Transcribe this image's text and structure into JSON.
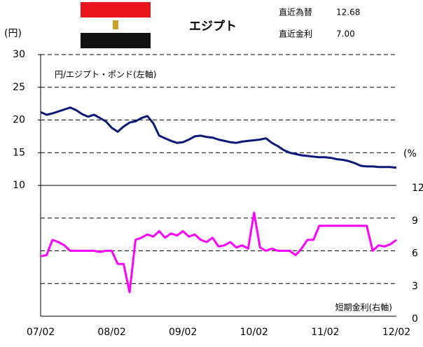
{
  "header": {
    "country": "エジプト",
    "fx_label": "直近為替",
    "fx_value": "12.68",
    "rate_label": "直近金利",
    "rate_value": "7.00"
  },
  "chart_data": {
    "type": "line",
    "ylabel": "(円)",
    "y2label": "(%",
    "x": [
      "07/02",
      "07/03",
      "07/04",
      "07/05",
      "07/06",
      "07/07",
      "07/08",
      "07/09",
      "07/10",
      "07/11",
      "07/12",
      "08/01",
      "08/02",
      "08/03",
      "08/04",
      "08/05",
      "08/06",
      "08/07",
      "08/08",
      "08/09",
      "08/10",
      "08/11",
      "08/12",
      "09/01",
      "09/02",
      "09/03",
      "09/04",
      "09/05",
      "09/06",
      "09/07",
      "09/08",
      "09/09",
      "09/10",
      "09/11",
      "09/12",
      "10/01",
      "10/02",
      "10/03",
      "10/04",
      "10/05",
      "10/06",
      "10/07",
      "10/08",
      "10/09",
      "10/10",
      "10/11",
      "10/12",
      "11/01",
      "11/02",
      "11/03",
      "11/04",
      "11/05",
      "11/06",
      "11/07",
      "11/08",
      "11/09",
      "11/10",
      "11/11",
      "11/12",
      "12/01",
      "12/02"
    ],
    "xticks": [
      0,
      12,
      24,
      36,
      48,
      60
    ],
    "ylim": [
      -10,
      30
    ],
    "yticks": [
      10,
      15,
      20,
      25,
      30
    ],
    "y2lim": [
      0,
      24
    ],
    "y2ticks": [
      0,
      3,
      6,
      9,
      12
    ],
    "grid": true,
    "series": [
      {
        "name": "円/エジプト・ポンド(左軸)",
        "color": "#0a1a7a",
        "values": [
          21.2,
          20.8,
          21.0,
          21.3,
          21.6,
          21.9,
          21.5,
          20.9,
          20.5,
          20.8,
          20.3,
          19.8,
          18.8,
          18.2,
          19.0,
          19.6,
          19.8,
          20.3,
          20.6,
          19.5,
          17.6,
          17.2,
          16.8,
          16.5,
          16.6,
          17.0,
          17.5,
          17.6,
          17.4,
          17.3,
          17.0,
          16.8,
          16.6,
          16.5,
          16.7,
          16.8,
          16.9,
          17.0,
          17.2,
          16.5,
          16.0,
          15.4,
          15.0,
          14.8,
          14.6,
          14.5,
          14.4,
          14.3,
          14.3,
          14.2,
          14.0,
          13.9,
          13.7,
          13.4,
          13.0,
          12.9,
          12.9,
          12.8,
          12.8,
          12.8,
          12.7
        ]
      },
      {
        "name": "短期金利(右軸)",
        "color": "#ff00ff",
        "axis": "y2",
        "values": [
          5.5,
          5.6,
          7.0,
          6.8,
          6.5,
          6.0,
          6.0,
          6.0,
          6.0,
          6.0,
          5.9,
          6.0,
          6.0,
          4.8,
          4.8,
          2.2,
          7.0,
          7.2,
          7.5,
          7.3,
          7.8,
          7.2,
          7.6,
          7.4,
          7.8,
          7.3,
          7.5,
          7.0,
          6.8,
          7.2,
          6.4,
          6.5,
          6.8,
          6.3,
          6.5,
          6.2,
          9.5,
          6.3,
          6.0,
          6.2,
          6.0,
          6.0,
          6.0,
          5.6,
          6.2,
          7.0,
          7.0,
          8.3,
          8.3,
          8.3,
          8.3,
          8.3,
          8.3,
          8.3,
          8.3,
          8.3,
          6.0,
          6.5,
          6.4,
          6.6,
          7.0
        ]
      }
    ]
  }
}
